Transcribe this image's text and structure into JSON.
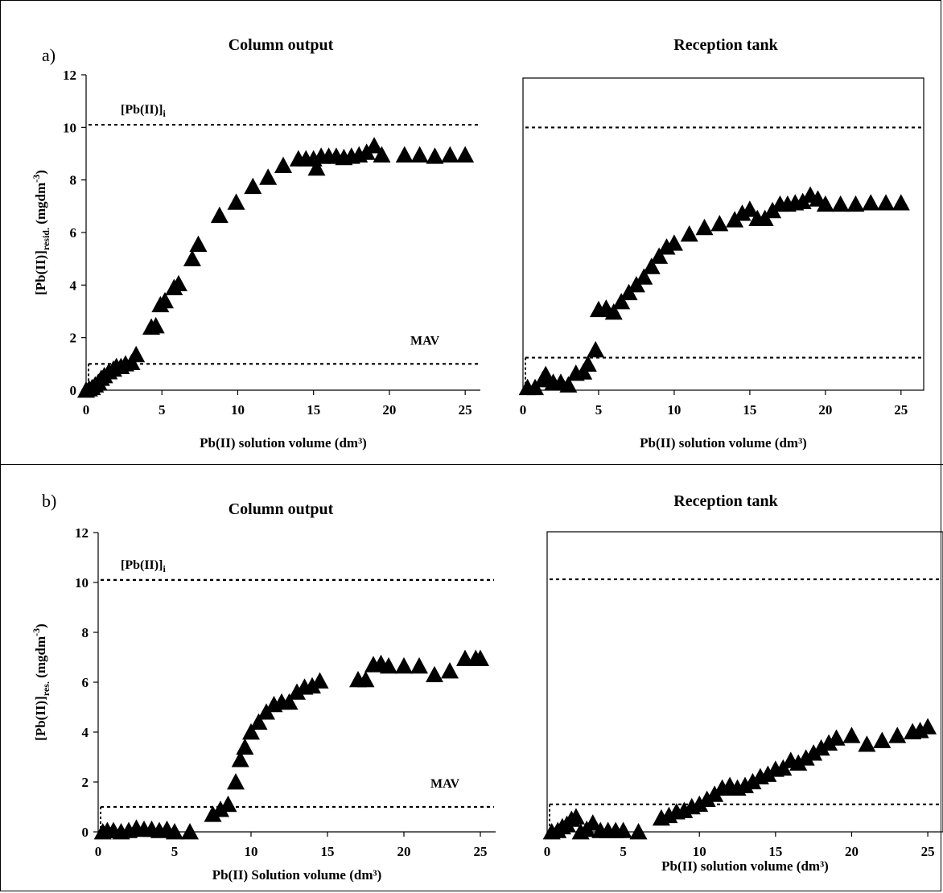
{
  "panels": [
    {
      "label": "a)"
    },
    {
      "label": "b)"
    }
  ],
  "chart_data": [
    {
      "type": "scatter",
      "panel": "a)",
      "title": "Column output",
      "xlabel": "Pb(II) solution volume (dm³)",
      "ylabel": "[Pb(II)]resid. (mgdm⁻³)",
      "ylabel_parts": {
        "main": "[Pb(II)]",
        "sub": "resid.",
        "unit": "(mgdm",
        "sup": "-3",
        "close": ")"
      },
      "xlim": [
        0,
        26
      ],
      "ylim": [
        0,
        12
      ],
      "xticks": [
        0,
        5,
        10,
        15,
        20,
        25
      ],
      "yticks": [
        0,
        2,
        4,
        6,
        8,
        10,
        12
      ],
      "show_y_ticks": true,
      "framed": false,
      "grid": false,
      "marker": "triangle",
      "reference_lines": [
        {
          "y": 10.1,
          "label_main": "[Pb(II)]",
          "label_sub": "i"
        },
        {
          "y": 1.0,
          "label_main": "MAV",
          "label_sub": ""
        }
      ],
      "points": [
        [
          0,
          0
        ],
        [
          0.2,
          0.05
        ],
        [
          0.4,
          0.1
        ],
        [
          0.6,
          0.2
        ],
        [
          0.8,
          0.3
        ],
        [
          1.0,
          0.45
        ],
        [
          1.2,
          0.55
        ],
        [
          1.5,
          0.7
        ],
        [
          1.8,
          0.8
        ],
        [
          2.0,
          0.9
        ],
        [
          2.3,
          0.9
        ],
        [
          2.6,
          1.0
        ],
        [
          3.0,
          1.05
        ],
        [
          3.3,
          1.35
        ],
        [
          4.3,
          2.4
        ],
        [
          4.6,
          2.45
        ],
        [
          4.9,
          3.25
        ],
        [
          5.2,
          3.4
        ],
        [
          5.8,
          3.9
        ],
        [
          6.1,
          4.05
        ],
        [
          7.0,
          5.0
        ],
        [
          7.4,
          5.55
        ],
        [
          8.8,
          6.65
        ],
        [
          9.9,
          7.15
        ],
        [
          11.0,
          7.75
        ],
        [
          12.0,
          8.1
        ],
        [
          13.0,
          8.55
        ],
        [
          14.0,
          8.8
        ],
        [
          14.5,
          8.8
        ],
        [
          15.0,
          8.8
        ],
        [
          15.2,
          8.45
        ],
        [
          15.5,
          8.9
        ],
        [
          16.0,
          8.9
        ],
        [
          16.5,
          8.9
        ],
        [
          17.0,
          8.85
        ],
        [
          17.5,
          8.9
        ],
        [
          18.0,
          8.95
        ],
        [
          18.5,
          9.05
        ],
        [
          19.0,
          9.3
        ],
        [
          19.5,
          8.95
        ],
        [
          21.0,
          8.95
        ],
        [
          22.0,
          8.95
        ],
        [
          23.0,
          8.9
        ],
        [
          24.0,
          8.95
        ],
        [
          25.0,
          8.95
        ]
      ]
    },
    {
      "type": "scatter",
      "panel": "a)",
      "title": "Reception tank",
      "xlabel": "Pb(II) solution volume (dm³)",
      "ylabel": "",
      "xlim": [
        0,
        26.5
      ],
      "ylim": [
        0,
        12
      ],
      "xticks": [
        0,
        5,
        10,
        15,
        20,
        25
      ],
      "yticks": [],
      "show_y_ticks": false,
      "framed": true,
      "grid": false,
      "marker": "triangle",
      "reference_lines": [
        {
          "y": 10.1,
          "label_main": "",
          "label_sub": ""
        },
        {
          "y": 1.25,
          "label_main": "",
          "label_sub": ""
        }
      ],
      "points": [
        [
          0.3,
          0.1
        ],
        [
          0.8,
          0.1
        ],
        [
          1.3,
          0.4
        ],
        [
          1.5,
          0.6
        ],
        [
          2.0,
          0.3
        ],
        [
          2.5,
          0.3
        ],
        [
          3.0,
          0.2
        ],
        [
          3.5,
          0.65
        ],
        [
          4.0,
          0.7
        ],
        [
          4.3,
          1.0
        ],
        [
          4.8,
          1.55
        ],
        [
          5.0,
          3.1
        ],
        [
          5.5,
          3.15
        ],
        [
          6.0,
          3.0
        ],
        [
          6.5,
          3.4
        ],
        [
          7.0,
          3.75
        ],
        [
          7.5,
          4.05
        ],
        [
          8.0,
          4.35
        ],
        [
          8.5,
          4.75
        ],
        [
          9.0,
          5.15
        ],
        [
          9.5,
          5.5
        ],
        [
          10.0,
          5.65
        ],
        [
          11.0,
          6.0
        ],
        [
          12.0,
          6.25
        ],
        [
          13.0,
          6.4
        ],
        [
          14.0,
          6.55
        ],
        [
          14.5,
          6.8
        ],
        [
          15.0,
          6.95
        ],
        [
          15.5,
          6.6
        ],
        [
          16.0,
          6.6
        ],
        [
          16.5,
          6.9
        ],
        [
          17.0,
          7.15
        ],
        [
          17.5,
          7.15
        ],
        [
          18.0,
          7.2
        ],
        [
          18.5,
          7.25
        ],
        [
          19.0,
          7.5
        ],
        [
          19.5,
          7.35
        ],
        [
          20.0,
          7.15
        ],
        [
          21.0,
          7.15
        ],
        [
          22.0,
          7.15
        ],
        [
          23.0,
          7.2
        ],
        [
          24.0,
          7.2
        ],
        [
          25.0,
          7.2
        ]
      ]
    },
    {
      "type": "scatter",
      "panel": "b)",
      "title": "Column output",
      "xlabel": "Pb(II) Solution volume (dm³)",
      "ylabel": "[Pb(II)]res. (mgdm⁻³)",
      "ylabel_parts": {
        "main": "[Pb(II)]",
        "sub": "res.",
        "unit": "(mgdm",
        "sup": "-3",
        "close": ")"
      },
      "xlim": [
        0,
        26
      ],
      "ylim": [
        0,
        12
      ],
      "xticks": [
        0,
        5,
        10,
        15,
        20,
        25
      ],
      "yticks": [
        0,
        2,
        4,
        6,
        8,
        10,
        12
      ],
      "show_y_ticks": true,
      "framed": false,
      "grid": false,
      "marker": "triangle",
      "reference_lines": [
        {
          "y": 10.1,
          "label_main": "[Pb(II)]",
          "label_sub": "i"
        },
        {
          "y": 1.0,
          "label_main": "MAV",
          "label_sub": ""
        }
      ],
      "points": [
        [
          0.3,
          0
        ],
        [
          0.6,
          0.05
        ],
        [
          1.0,
          0.05
        ],
        [
          1.5,
          0
        ],
        [
          2.0,
          0.05
        ],
        [
          2.5,
          0.15
        ],
        [
          3.0,
          0.1
        ],
        [
          3.5,
          0.1
        ],
        [
          4.0,
          0.05
        ],
        [
          4.5,
          0.1
        ],
        [
          5.0,
          0
        ],
        [
          6.0,
          0
        ],
        [
          7.5,
          0.7
        ],
        [
          8.0,
          0.9
        ],
        [
          8.5,
          1.1
        ],
        [
          9.0,
          2.0
        ],
        [
          9.3,
          2.9
        ],
        [
          9.6,
          3.4
        ],
        [
          10.0,
          4.0
        ],
        [
          10.5,
          4.4
        ],
        [
          11.0,
          4.8
        ],
        [
          11.5,
          5.1
        ],
        [
          12.0,
          5.2
        ],
        [
          12.5,
          5.2
        ],
        [
          13.0,
          5.6
        ],
        [
          13.5,
          5.8
        ],
        [
          14.0,
          5.85
        ],
        [
          14.5,
          6.05
        ],
        [
          17.0,
          6.1
        ],
        [
          17.5,
          6.1
        ],
        [
          18.0,
          6.7
        ],
        [
          18.5,
          6.75
        ],
        [
          19.0,
          6.65
        ],
        [
          20.0,
          6.65
        ],
        [
          21.0,
          6.65
        ],
        [
          22.0,
          6.3
        ],
        [
          23.0,
          6.45
        ],
        [
          24.0,
          6.95
        ],
        [
          24.7,
          6.95
        ],
        [
          25.0,
          6.95
        ]
      ]
    },
    {
      "type": "scatter",
      "panel": "b)",
      "title": "Reception tank",
      "xlabel": "Pb(II) solution volume (dm³)",
      "ylabel": "",
      "xlim": [
        0,
        26
      ],
      "ylim": [
        0,
        12
      ],
      "xticks": [
        0,
        5,
        10,
        15,
        20,
        25
      ],
      "yticks": [],
      "show_y_ticks": false,
      "framed": true,
      "grid": false,
      "marker": "triangle",
      "reference_lines": [
        {
          "y": 10.1,
          "label_main": "",
          "label_sub": ""
        },
        {
          "y": 1.1,
          "label_main": "",
          "label_sub": ""
        }
      ],
      "points": [
        [
          0.3,
          0
        ],
        [
          0.7,
          0.05
        ],
        [
          1.0,
          0.2
        ],
        [
          1.3,
          0.3
        ],
        [
          1.6,
          0.5
        ],
        [
          1.9,
          0.6
        ],
        [
          2.2,
          0
        ],
        [
          2.6,
          0.1
        ],
        [
          3.0,
          0.35
        ],
        [
          3.5,
          0.05
        ],
        [
          4.0,
          0.05
        ],
        [
          4.5,
          0.05
        ],
        [
          5.0,
          0.05
        ],
        [
          6.0,
          0
        ],
        [
          7.5,
          0.55
        ],
        [
          8.0,
          0.65
        ],
        [
          8.5,
          0.8
        ],
        [
          9.0,
          0.85
        ],
        [
          9.5,
          1.0
        ],
        [
          10.0,
          1.1
        ],
        [
          10.5,
          1.3
        ],
        [
          11.0,
          1.5
        ],
        [
          11.5,
          1.75
        ],
        [
          12.0,
          1.85
        ],
        [
          12.5,
          1.75
        ],
        [
          13.0,
          1.85
        ],
        [
          13.5,
          2.0
        ],
        [
          14.0,
          2.2
        ],
        [
          14.5,
          2.3
        ],
        [
          15.0,
          2.5
        ],
        [
          15.5,
          2.55
        ],
        [
          16.0,
          2.85
        ],
        [
          16.5,
          2.75
        ],
        [
          17.0,
          2.95
        ],
        [
          17.5,
          3.15
        ],
        [
          18.0,
          3.35
        ],
        [
          18.5,
          3.55
        ],
        [
          19.0,
          3.75
        ],
        [
          20.0,
          3.85
        ],
        [
          21.0,
          3.5
        ],
        [
          22.0,
          3.65
        ],
        [
          23.0,
          3.85
        ],
        [
          24.0,
          4.0
        ],
        [
          24.5,
          4.05
        ],
        [
          25.0,
          4.2
        ]
      ]
    }
  ]
}
